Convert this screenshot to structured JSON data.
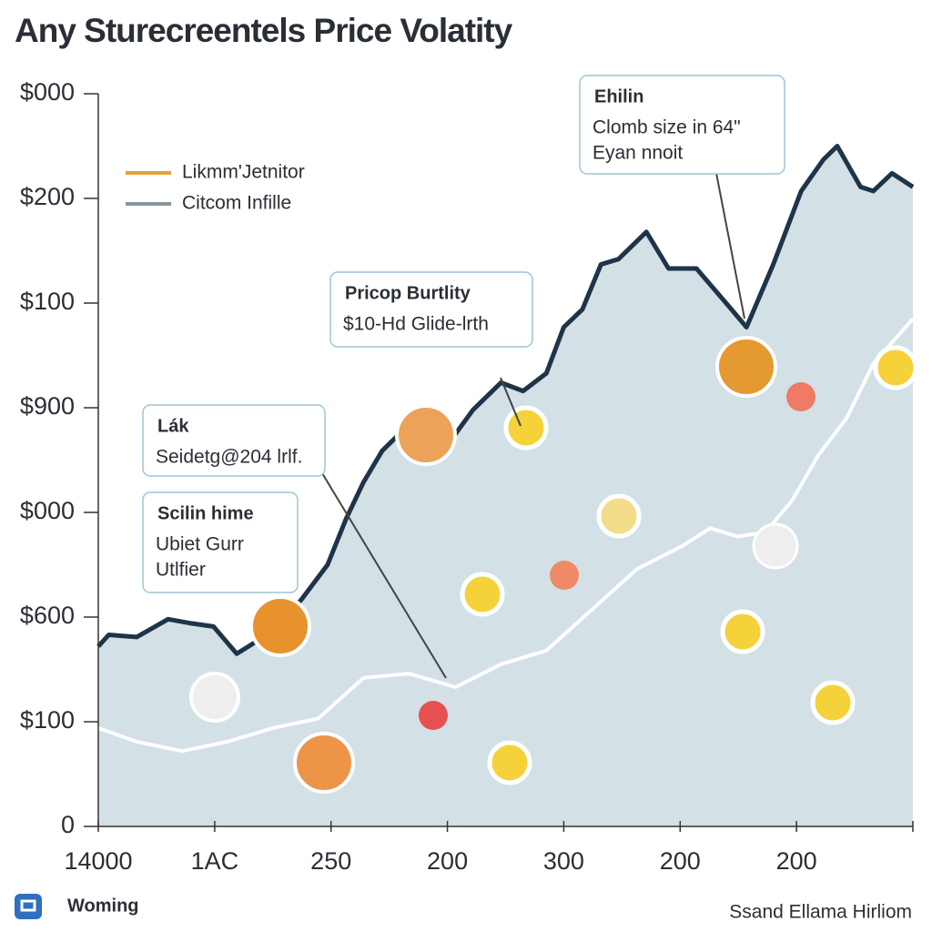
{
  "chart_data": {
    "type": "area-line",
    "title": "Any Sturecreentels Price Volatity",
    "xlim": [
      0,
      7
    ],
    "ylim": [
      0,
      7
    ],
    "xticks": [
      {
        "value": 0,
        "label": "14000"
      },
      {
        "value": 1,
        "label": "1AC"
      },
      {
        "value": 2,
        "label": "250"
      },
      {
        "value": 3,
        "label": "200"
      },
      {
        "value": 4,
        "label": "300"
      },
      {
        "value": 5,
        "label": "200"
      },
      {
        "value": 6,
        "label": "200"
      }
    ],
    "yticks": [
      {
        "value": 0,
        "label": "0"
      },
      {
        "value": 1,
        "label": "$100"
      },
      {
        "value": 2,
        "label": "$600"
      },
      {
        "value": 3,
        "label": "$000"
      },
      {
        "value": 4,
        "label": "$900"
      },
      {
        "value": 5,
        "label": "$100"
      },
      {
        "value": 6,
        "label": "$200"
      },
      {
        "value": 7,
        "label": "$000"
      }
    ],
    "series": [
      {
        "name": "Likmm'Jetnitor",
        "color": "#1e3448",
        "fill": "#d3e0e6",
        "legend_color": "#e9a03a",
        "x": [
          0,
          0.09,
          0.33,
          0.6,
          0.8,
          0.99,
          1.19,
          1.42,
          1.74,
          1.97,
          2.13,
          2.28,
          2.44,
          2.56,
          2.75,
          2.99,
          3.22,
          3.46,
          3.65,
          3.85,
          4.0,
          4.16,
          4.32,
          4.47,
          4.71,
          4.9,
          5.14,
          5.41,
          5.57,
          5.8,
          6.04,
          6.23,
          6.35,
          6.55,
          6.66,
          6.82,
          7
        ],
        "values": [
          1.72,
          1.83,
          1.81,
          1.98,
          1.94,
          1.91,
          1.65,
          1.81,
          2.16,
          2.5,
          2.94,
          3.29,
          3.59,
          3.72,
          3.81,
          3.63,
          3.98,
          4.24,
          4.16,
          4.33,
          4.77,
          4.94,
          5.37,
          5.42,
          5.68,
          5.33,
          5.33,
          4.98,
          4.77,
          5.37,
          6.07,
          6.37,
          6.5,
          6.11,
          6.07,
          6.24,
          6.11
        ]
      },
      {
        "name": "Citcom Infille",
        "color": "#ffffff",
        "legend_color": "#8a969e",
        "x": [
          0,
          0.33,
          0.72,
          1.11,
          1.5,
          1.89,
          2.28,
          2.67,
          3.07,
          3.46,
          3.85,
          4.24,
          4.63,
          5.02,
          5.26,
          5.49,
          5.73,
          5.96,
          6.19,
          6.43,
          6.66,
          7
        ],
        "values": [
          0.94,
          0.81,
          0.72,
          0.81,
          0.94,
          1.03,
          1.42,
          1.46,
          1.33,
          1.55,
          1.68,
          2.07,
          2.46,
          2.68,
          2.85,
          2.77,
          2.81,
          3.11,
          3.55,
          3.9,
          4.42,
          4.85
        ]
      }
    ],
    "annotations": [
      {
        "title": "Ehilin",
        "lines": [
          "Clomb size in 64\"",
          "Eyan nnoit"
        ]
      },
      {
        "title": "Pricop Burtlity",
        "lines": [
          "$10-Hd Glide-lrth"
        ]
      },
      {
        "title": "Lák",
        "lines": [
          "Seidetg@204 lrlf."
        ]
      },
      {
        "title": "Scilin hime",
        "lines": [
          "Ubiet Gurr",
          "Utlfier"
        ]
      }
    ],
    "footer_left": "Woming",
    "footer_right": "Ssand Ellama Hirliom"
  }
}
